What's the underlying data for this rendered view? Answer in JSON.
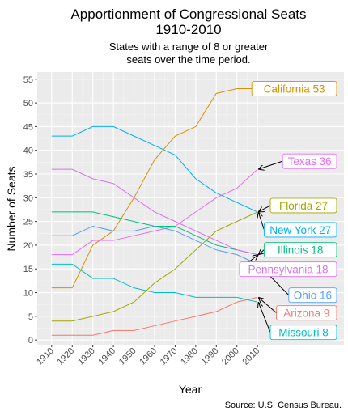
{
  "chart_data": {
    "type": "line",
    "title_line1": "Apportionment of Congressional Seats",
    "title_line2": "1910-2010",
    "subtitle_line1": "States with a range of 8 or greater",
    "subtitle_line2": "seats over the time period.",
    "xlabel": "Year",
    "ylabel": "Number of Seats",
    "caption": "Source: U.S. Census Bureau.",
    "x": [
      1910,
      1920,
      1930,
      1940,
      1950,
      1960,
      1970,
      1980,
      1990,
      2000,
      2010
    ],
    "x_ticks": [
      "1910",
      "1920",
      "1930",
      "1940",
      "1950",
      "1960",
      "1970",
      "1980",
      "1990",
      "2000",
      "2010"
    ],
    "y_ticks": [
      "0",
      "5",
      "10",
      "15",
      "20",
      "25",
      "30",
      "35",
      "40",
      "45",
      "50",
      "55"
    ],
    "xlim": [
      1903,
      2052
    ],
    "ylim": [
      -1,
      56.5
    ],
    "grid": true,
    "series": [
      {
        "name": "California",
        "label": "California 53",
        "color": "#D89000",
        "values": [
          11,
          11,
          20,
          23,
          30,
          38,
          43,
          45,
          52,
          53,
          53
        ]
      },
      {
        "name": "Texas",
        "label": "Texas 36",
        "color": "#E76BF3",
        "values": [
          18,
          18,
          21,
          21,
          22,
          23,
          24,
          27,
          30,
          32,
          36
        ]
      },
      {
        "name": "Florida",
        "label": "Florida 27",
        "color": "#A3A500",
        "values": [
          4,
          4,
          5,
          6,
          8,
          12,
          15,
          19,
          23,
          25,
          27
        ]
      },
      {
        "name": "New York",
        "label": "New York 27",
        "color": "#00B0F6",
        "values": [
          43,
          43,
          45,
          45,
          43,
          41,
          39,
          34,
          31,
          29,
          27
        ]
      },
      {
        "name": "Illinois",
        "label": "Illinois 18",
        "color": "#00BF7D",
        "values": [
          27,
          27,
          27,
          26,
          25,
          24,
          24,
          22,
          20,
          19,
          18
        ]
      },
      {
        "name": "Pennsylvania",
        "label": "Pennsylvania 18",
        "color": "#D970F0",
        "values": [
          36,
          36,
          34,
          33,
          30,
          27,
          25,
          23,
          21,
          19,
          18
        ]
      },
      {
        "name": "Ohio",
        "label": "Ohio 16",
        "color": "#529EFF",
        "values": [
          22,
          22,
          24,
          23,
          23,
          24,
          23,
          21,
          19,
          18,
          16
        ]
      },
      {
        "name": "Arizona",
        "label": "Arizona 9",
        "color": "#F8766D",
        "values": [
          1,
          1,
          1,
          2,
          2,
          3,
          4,
          5,
          6,
          8,
          9
        ]
      },
      {
        "name": "Missouri",
        "label": "Missouri 8",
        "color": "#00BFC4",
        "values": [
          16,
          16,
          13,
          13,
          11,
          10,
          10,
          9,
          9,
          9,
          8
        ]
      }
    ]
  }
}
